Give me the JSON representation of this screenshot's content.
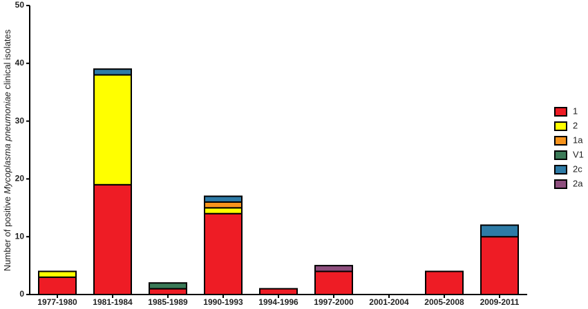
{
  "chart_data": {
    "type": "stacked-bar",
    "y_label": [
      "Number of positive ",
      "Mycoplasma pneumoniae",
      " clinical isolates"
    ],
    "categories": [
      "1977-1980",
      "1981-1984",
      "1985-1989",
      "1990-1993",
      "1994-1996",
      "1997-2000",
      "2001-2004",
      "2005-2008",
      "2009-2011"
    ],
    "series": [
      {
        "name": "1",
        "color": "#ee1c25",
        "values": [
          3,
          19,
          1,
          14,
          1,
          4,
          0,
          4,
          10
        ]
      },
      {
        "name": "2",
        "color": "#ffff00",
        "values": [
          1,
          19,
          0,
          1,
          0,
          0,
          0,
          0,
          0
        ]
      },
      {
        "name": "1a",
        "color": "#f7941d",
        "values": [
          0,
          0,
          0,
          1,
          0,
          0,
          0,
          0,
          0
        ]
      },
      {
        "name": "V1",
        "color": "#3b7a57",
        "values": [
          0,
          0,
          1,
          0,
          0,
          0,
          0,
          0,
          0
        ]
      },
      {
        "name": "2c",
        "color": "#2e7ba6",
        "values": [
          0,
          1,
          0,
          1,
          0,
          0,
          0,
          0,
          2
        ]
      },
      {
        "name": "2a",
        "color": "#8e4f7e",
        "values": [
          0,
          0,
          0,
          0,
          0,
          1,
          0,
          0,
          0
        ]
      }
    ],
    "ylim": [
      0,
      50
    ],
    "yticks": [
      0,
      10,
      20,
      30,
      40,
      50
    ]
  }
}
